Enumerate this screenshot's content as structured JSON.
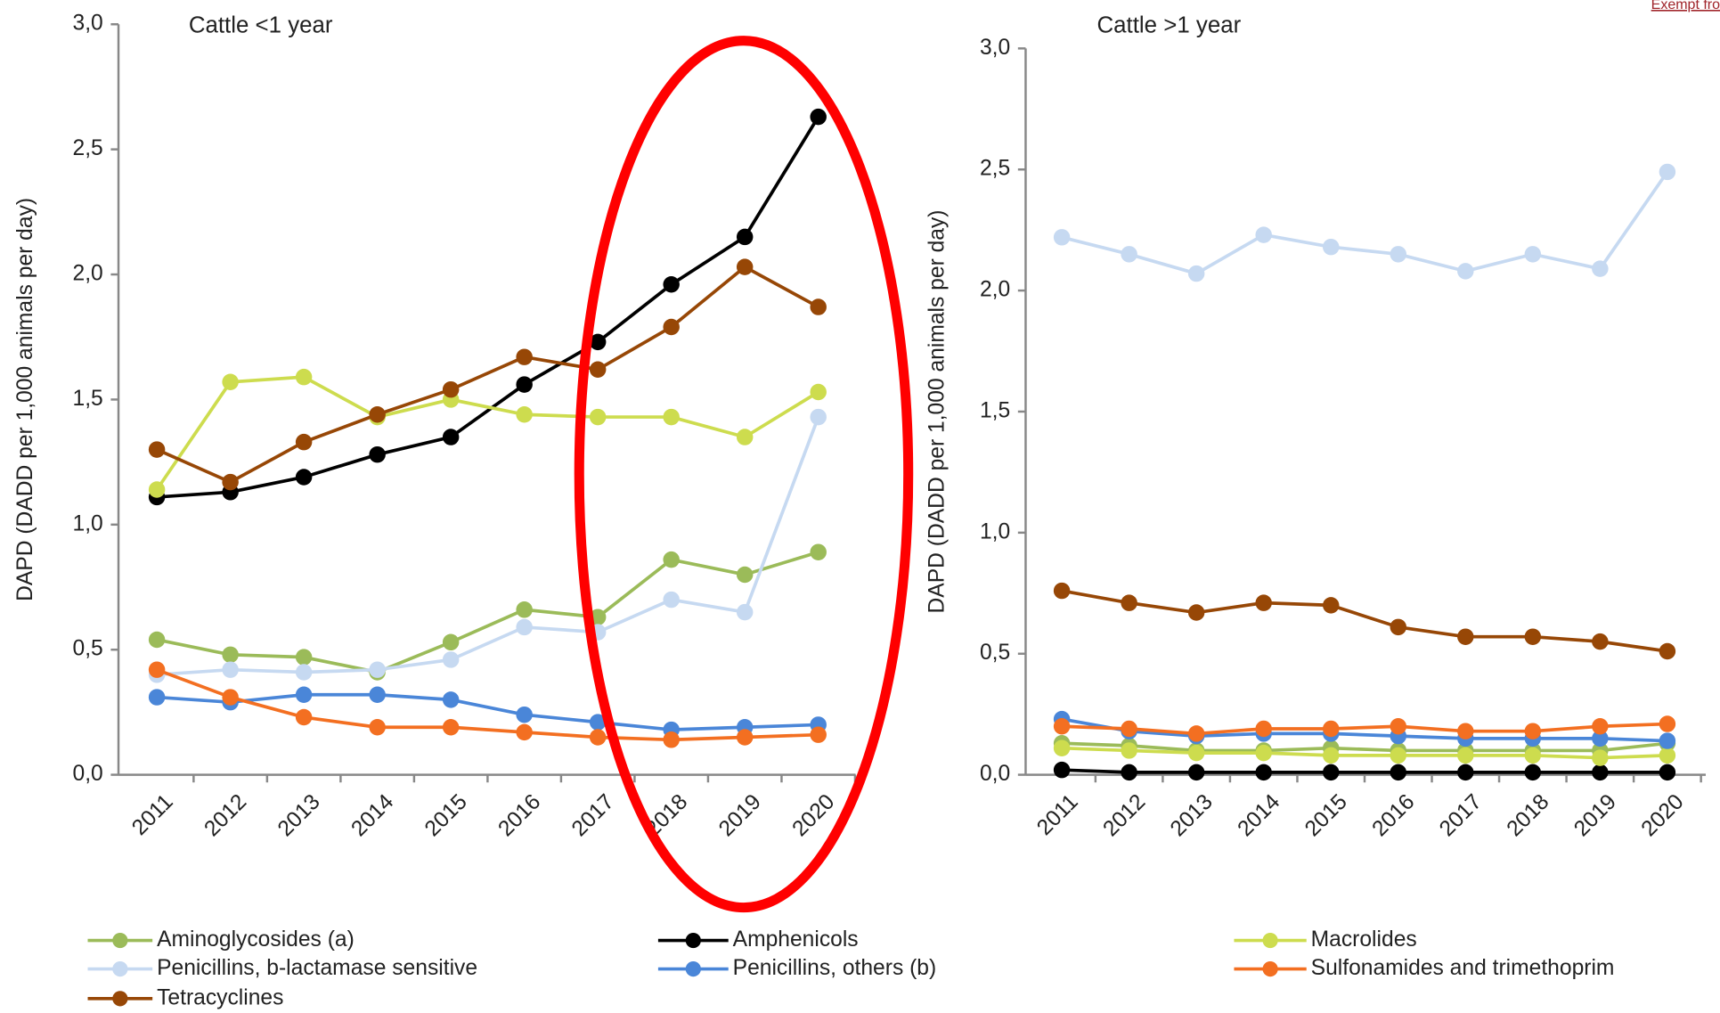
{
  "header_link": "Exempt fro",
  "chart_data": [
    {
      "type": "line",
      "title": "Cattle <1 year",
      "y_label": "DAPD (DADD per 1,000 animals per day)",
      "categories": [
        "2011",
        "2012",
        "2013",
        "2014",
        "2015",
        "2016",
        "2017",
        "2018",
        "2019",
        "2020"
      ],
      "ylim": [
        0,
        3
      ],
      "yticks": [
        {
          "value": 0,
          "label": "0,0"
        },
        {
          "value": 0.5,
          "label": "0,5"
        },
        {
          "value": 1,
          "label": "1,0"
        },
        {
          "value": 1.5,
          "label": "1,5"
        },
        {
          "value": 2,
          "label": "2,0"
        },
        {
          "value": 2.5,
          "label": "2,5"
        },
        {
          "value": 3,
          "label": "3,0"
        }
      ],
      "series": [
        {
          "name": "Aminoglycosides (a)",
          "color": "#9bbb59",
          "values": [
            0.54,
            0.48,
            0.47,
            0.41,
            0.53,
            0.66,
            0.63,
            0.86,
            0.8,
            0.89
          ]
        },
        {
          "name": "Amphenicols",
          "color": "#000000",
          "values": [
            1.11,
            1.13,
            1.19,
            1.28,
            1.35,
            1.56,
            1.73,
            1.96,
            2.15,
            2.63
          ]
        },
        {
          "name": "Macrolides",
          "color": "#cddc4e",
          "values": [
            1.14,
            1.57,
            1.59,
            1.43,
            1.5,
            1.44,
            1.43,
            1.43,
            1.35,
            1.53
          ]
        },
        {
          "name": "Penicillins, b-lactamase sensitive",
          "color": "#c6d9f1",
          "values": [
            0.4,
            0.42,
            0.41,
            0.42,
            0.46,
            0.59,
            0.57,
            0.7,
            0.65,
            1.43
          ]
        },
        {
          "name": "Penicillins, others (b)",
          "color": "#4a86d8",
          "values": [
            0.31,
            0.29,
            0.32,
            0.32,
            0.3,
            0.24,
            0.21,
            0.18,
            0.19,
            0.2
          ]
        },
        {
          "name": "Sulfonamides and trimethoprim",
          "color": "#f36f21",
          "values": [
            0.42,
            0.31,
            0.23,
            0.19,
            0.19,
            0.17,
            0.15,
            0.14,
            0.15,
            0.16
          ]
        },
        {
          "name": "Tetracyclines",
          "color": "#974706",
          "values": [
            1.3,
            1.17,
            1.33,
            1.44,
            1.54,
            1.67,
            1.62,
            1.79,
            2.03,
            1.87
          ]
        }
      ]
    },
    {
      "type": "line",
      "title": "Cattle >1 year",
      "y_label": "DAPD (DADD per 1,000 animals per day)",
      "categories": [
        "2011",
        "2012",
        "2013",
        "2014",
        "2015",
        "2016",
        "2017",
        "2018",
        "2019",
        "2020"
      ],
      "ylim": [
        0,
        3
      ],
      "yticks": [
        {
          "value": 0,
          "label": "0,0"
        },
        {
          "value": 0.5,
          "label": "0,5"
        },
        {
          "value": 1,
          "label": "1,0"
        },
        {
          "value": 1.5,
          "label": "1,5"
        },
        {
          "value": 2,
          "label": "2,0"
        },
        {
          "value": 2.5,
          "label": "2,5"
        },
        {
          "value": 3,
          "label": "3,0"
        }
      ],
      "series": [
        {
          "name": "Aminoglycosides (a)",
          "color": "#9bbb59",
          "values": [
            0.13,
            0.12,
            0.1,
            0.1,
            0.11,
            0.1,
            0.1,
            0.1,
            0.1,
            0.13
          ]
        },
        {
          "name": "Amphenicols",
          "color": "#000000",
          "values": [
            0.02,
            0.01,
            0.01,
            0.01,
            0.01,
            0.01,
            0.01,
            0.01,
            0.01,
            0.01
          ]
        },
        {
          "name": "Macrolides",
          "color": "#cddc4e",
          "values": [
            0.11,
            0.1,
            0.09,
            0.09,
            0.08,
            0.08,
            0.08,
            0.08,
            0.07,
            0.08
          ]
        },
        {
          "name": "Penicillins, b-lactamase sensitive",
          "color": "#c6d9f1",
          "values": [
            2.22,
            2.15,
            2.07,
            2.23,
            2.18,
            2.15,
            2.08,
            2.15,
            2.09,
            2.49
          ]
        },
        {
          "name": "Penicillins, others (b)",
          "color": "#4a86d8",
          "values": [
            0.23,
            0.18,
            0.16,
            0.17,
            0.17,
            0.16,
            0.15,
            0.15,
            0.15,
            0.14
          ]
        },
        {
          "name": "Sulfonamides and trimethoprim",
          "color": "#f36f21",
          "values": [
            0.2,
            0.19,
            0.17,
            0.19,
            0.19,
            0.2,
            0.18,
            0.18,
            0.2,
            0.21
          ]
        },
        {
          "name": "Tetracyclines",
          "color": "#974706",
          "values": [
            0.76,
            0.71,
            0.67,
            0.71,
            0.7,
            0.61,
            0.57,
            0.57,
            0.55,
            0.51
          ]
        }
      ]
    }
  ]
}
